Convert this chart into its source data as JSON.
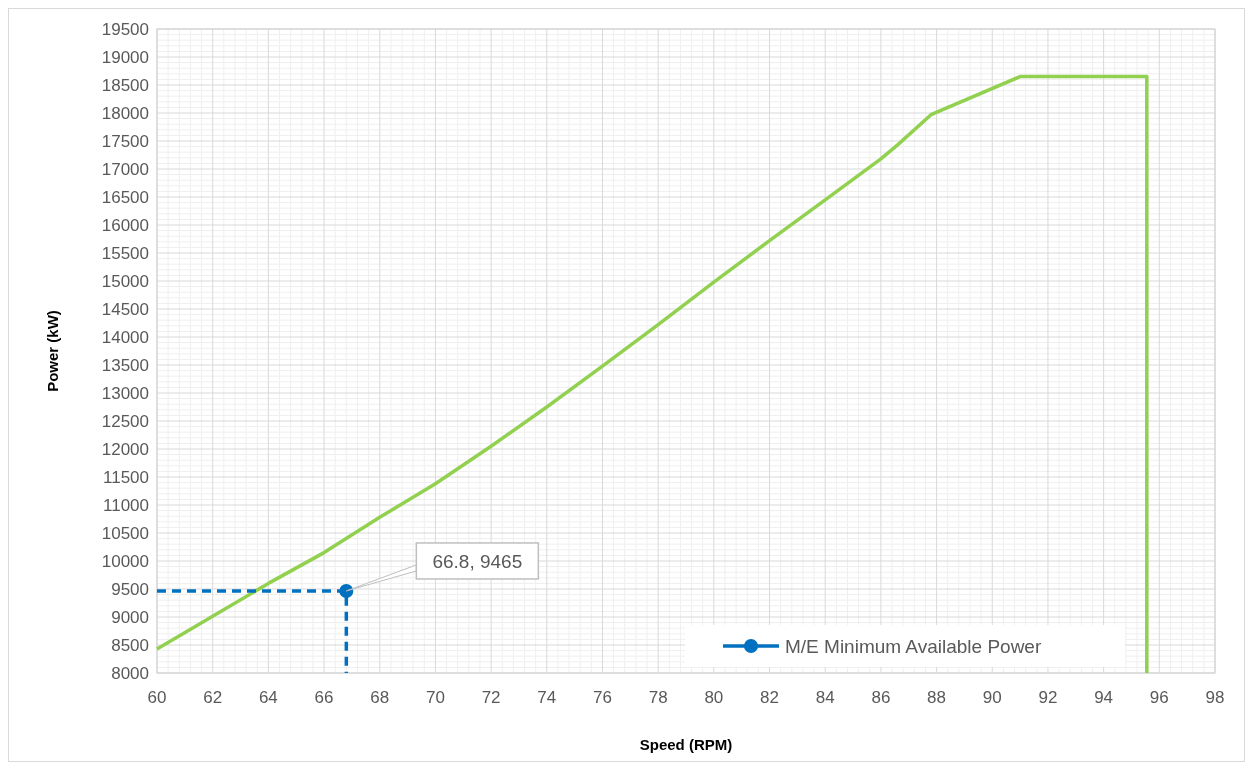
{
  "chart_data": {
    "type": "line",
    "xlabel": "Speed (RPM)",
    "ylabel": "Power (kW)",
    "xlim": [
      60,
      98
    ],
    "xticks": [
      60,
      62,
      64,
      66,
      68,
      70,
      72,
      74,
      76,
      78,
      80,
      82,
      84,
      86,
      88,
      90,
      92,
      94,
      96,
      98
    ],
    "ylim": [
      8000,
      19500
    ],
    "yticks": [
      8000,
      8500,
      9000,
      9500,
      10000,
      10500,
      11000,
      11500,
      12000,
      12500,
      13000,
      13500,
      14000,
      14500,
      15000,
      15500,
      16000,
      16500,
      17000,
      17500,
      18000,
      18500,
      19000,
      19500
    ],
    "grid": true,
    "legend": "bottom right",
    "series": [
      {
        "color": "#92d050",
        "marker": "none",
        "line_style": "solid",
        "x": [
          60,
          64,
          66,
          68,
          70,
          72,
          74,
          76,
          78,
          80,
          82,
          84,
          86,
          86.6,
          87.8,
          91,
          95.55,
          95.55
        ],
        "values": [
          8430,
          9600,
          10150,
          10780,
          11380,
          12050,
          12750,
          13480,
          14220,
          14980,
          15720,
          16450,
          17180,
          17430,
          17970,
          18650,
          18650,
          8000
        ]
      },
      {
        "color": "#0070c0",
        "marker": "none",
        "line_style": "dashed",
        "x": [
          60,
          66.8,
          66.8
        ],
        "values": [
          9465,
          9465,
          8000
        ]
      },
      {
        "type": "scatter",
        "name": "M/E Minimum Available Power",
        "color": "#0070c0",
        "marker": "circle",
        "x": [
          66.8
        ],
        "values": [
          9465
        ]
      }
    ],
    "annotations": [
      {
        "text": "66.8, 9465",
        "x": 66.8,
        "y": 9465
      }
    ]
  }
}
